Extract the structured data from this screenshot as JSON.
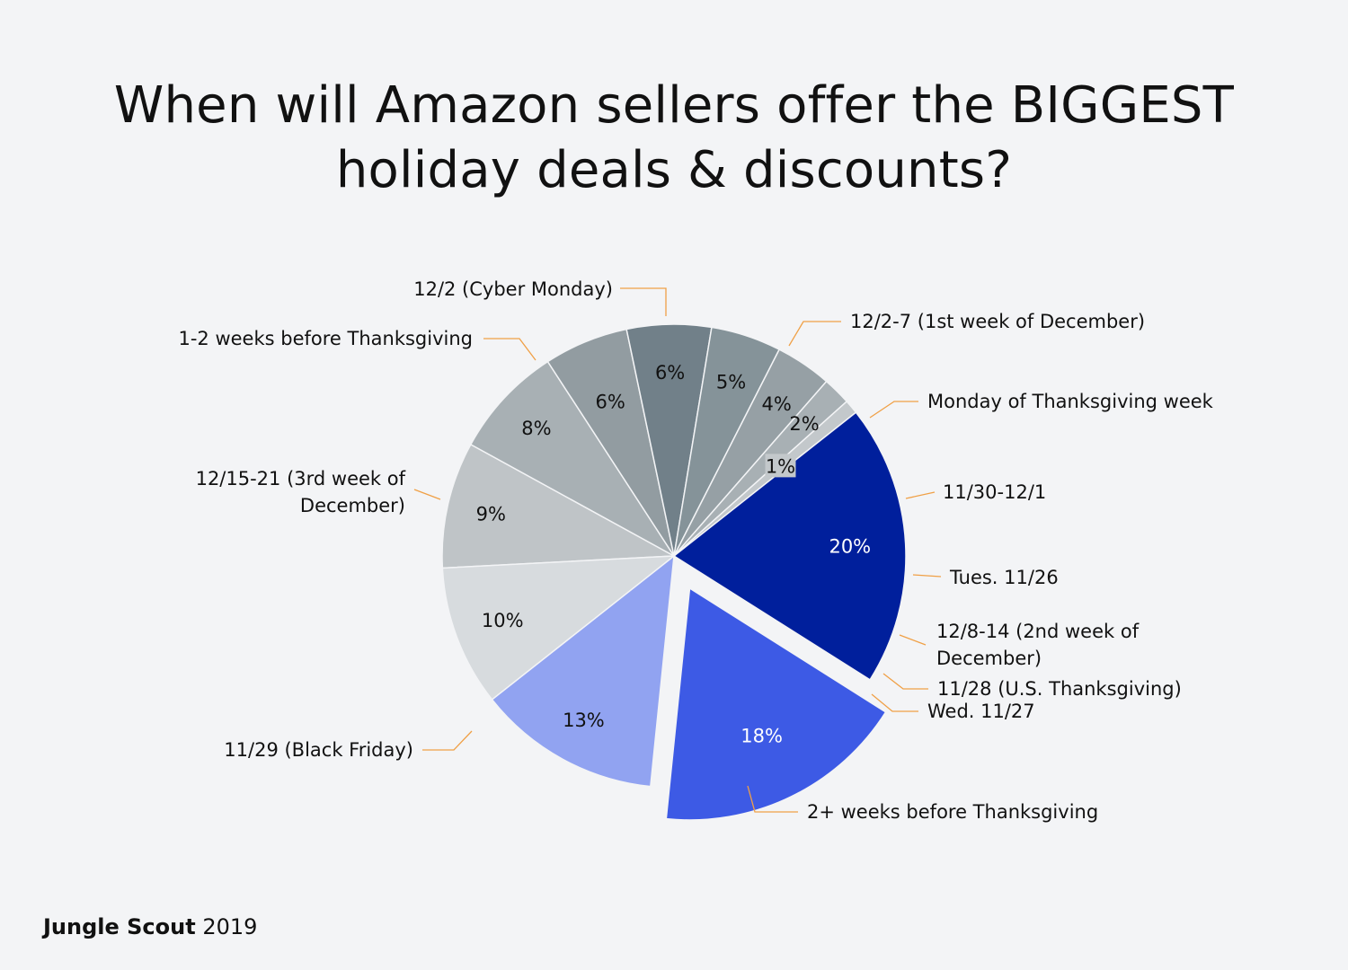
{
  "title_line1": "When will Amazon sellers offer the BIGGEST",
  "title_line2": "holiday deals & discounts?",
  "footer": {
    "brand": "Jungle Scout",
    "year": "2019"
  },
  "chart_data": {
    "type": "pie",
    "title": "When will Amazon sellers offer the BIGGEST holiday deals & discounts?",
    "slices": [
      {
        "label": "12/2 (Cyber Monday)",
        "value": 9,
        "value_label": "9%",
        "color": "#bfc4c7"
      },
      {
        "label": "12/2-7 (1st week of December)",
        "value": 8,
        "value_label": "8%",
        "color": "#a8b0b4"
      },
      {
        "label": "Monday of Thanksgiving week",
        "value": 6,
        "value_label": "6%",
        "color": "#929ca1"
      },
      {
        "label": "11/30-12/1",
        "value": 6,
        "value_label": "6%",
        "color": "#718089"
      },
      {
        "label": "Tues. 11/26",
        "value": 5,
        "value_label": "5%",
        "color": "#859399"
      },
      {
        "label": "12/8-14 (2nd week of December)",
        "value": 4,
        "value_label": "4%",
        "color": "#96a0a5"
      },
      {
        "label": "11/28 (U.S. Thanksgiving)",
        "value": 2,
        "value_label": "2%",
        "color": "#a8b0b4"
      },
      {
        "label": "Wed. 11/27",
        "value": 1,
        "value_label": "1%",
        "color": "#c3c8cb"
      },
      {
        "label": "2+ weeks before Thanksgiving",
        "value": 20,
        "value_label": "20%",
        "color": "#001f9c"
      },
      {
        "label": "11/29 (Black Friday)",
        "value": 18,
        "value_label": "18%",
        "color": "#3d5ae5",
        "exploded": true
      },
      {
        "label": "12/15-21 (3rd week of December)",
        "value": 13,
        "value_label": "13%",
        "color": "#91a3f1"
      },
      {
        "label": "1-2 weeks before Thanksgiving",
        "value": 10,
        "value_label": "10%",
        "color": "#d7dbde"
      }
    ],
    "leader_line_color": "#f0a046",
    "legend": "none"
  }
}
